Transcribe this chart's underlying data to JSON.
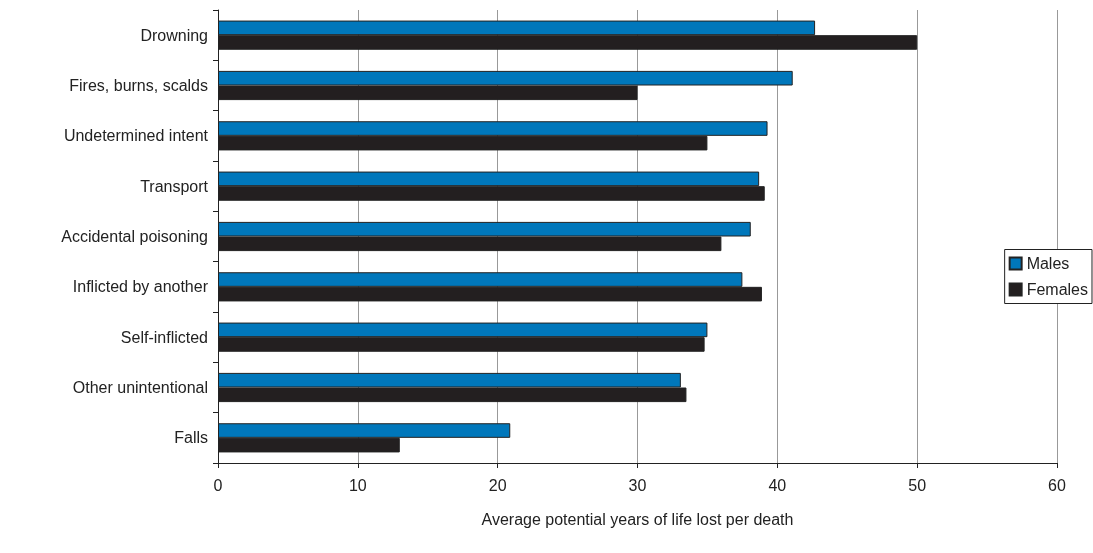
{
  "chart_data": {
    "type": "bar",
    "orientation": "horizontal",
    "xlabel": "Average potential years of life lost per death",
    "categories": [
      "Drowning",
      "Fires, burns, scalds",
      "Undetermined intent",
      "Transport",
      "Accidental poisoning",
      "Inflicted by another",
      "Self-inflicted",
      "Other unintentional",
      "Falls"
    ],
    "series": [
      {
        "name": "Males",
        "color": "#0077bb",
        "values": [
          42.7,
          41.1,
          39.3,
          38.7,
          38.1,
          37.5,
          35.0,
          33.1,
          20.9
        ]
      },
      {
        "name": "Females",
        "color": "#231f20",
        "values": [
          50.0,
          30.0,
          35.0,
          39.1,
          36.0,
          38.9,
          34.8,
          33.5,
          13.0
        ]
      }
    ],
    "xlim": [
      0,
      60
    ],
    "xticks": [
      0,
      10,
      20,
      30,
      40,
      50,
      60
    ],
    "grid": "x",
    "legend": "right"
  }
}
